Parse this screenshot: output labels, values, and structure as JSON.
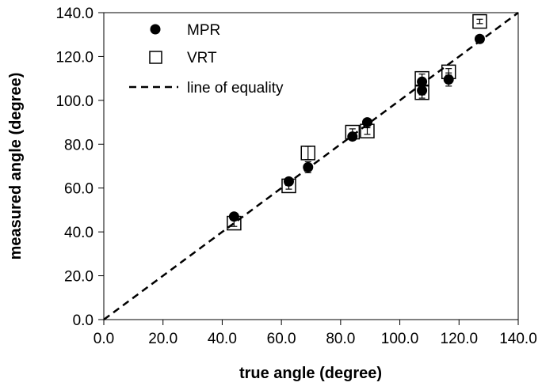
{
  "chart_data": {
    "type": "scatter",
    "xlabel": "true angle (degree)",
    "ylabel": "measured angle (degree)",
    "xlim": [
      0,
      140
    ],
    "ylim": [
      0,
      140
    ],
    "xticks": [
      "0.0",
      "20.0",
      "40.0",
      "60.0",
      "80.0",
      "100.0",
      "120.0",
      "140.0"
    ],
    "yticks": [
      "0.0",
      "20.0",
      "40.0",
      "60.0",
      "80.0",
      "100.0",
      "120.0",
      "140.0"
    ],
    "tick_values": [
      0,
      20,
      40,
      60,
      80,
      100,
      120,
      140
    ],
    "grid": false,
    "legend_position": "top-left",
    "series": [
      {
        "name": "MPR",
        "marker": "filled-circle",
        "color": "#000000",
        "points": [
          {
            "x": 44.0,
            "y": 47.0,
            "err": 1.0
          },
          {
            "x": 62.5,
            "y": 63.0,
            "err": 1.0
          },
          {
            "x": 69.0,
            "y": 69.5,
            "err": 2.5
          },
          {
            "x": 84.0,
            "y": 83.5,
            "err": 1.0
          },
          {
            "x": 89.0,
            "y": 90.0,
            "err": 1.0
          },
          {
            "x": 107.5,
            "y": 108.5,
            "err": 1.5
          },
          {
            "x": 107.5,
            "y": 104.5,
            "err": 2.0
          },
          {
            "x": 116.5,
            "y": 109.5,
            "err": 3.0
          },
          {
            "x": 127.0,
            "y": 128.0,
            "err": 1.5
          }
        ]
      },
      {
        "name": "VRT",
        "marker": "open-square",
        "color": "#000000",
        "points": [
          {
            "x": 44.0,
            "y": 44.0,
            "err": 1.5
          },
          {
            "x": 62.5,
            "y": 61.0,
            "err": 1.5
          },
          {
            "x": 69.0,
            "y": 76.0,
            "err": 3.0
          },
          {
            "x": 84.0,
            "y": 85.5,
            "err": 1.5
          },
          {
            "x": 89.0,
            "y": 86.0,
            "err": 1.5
          },
          {
            "x": 107.5,
            "y": 110.0,
            "err": 2.0
          },
          {
            "x": 107.5,
            "y": 103.5,
            "err": 2.5
          },
          {
            "x": 116.5,
            "y": 113.0,
            "err": 1.5
          },
          {
            "x": 127.0,
            "y": 136.0,
            "err": 1.0
          }
        ]
      }
    ],
    "reference_line": {
      "name": "line of equality",
      "style": "dashed",
      "color": "#000000",
      "from": [
        0,
        0
      ],
      "to": [
        140,
        140
      ]
    }
  }
}
